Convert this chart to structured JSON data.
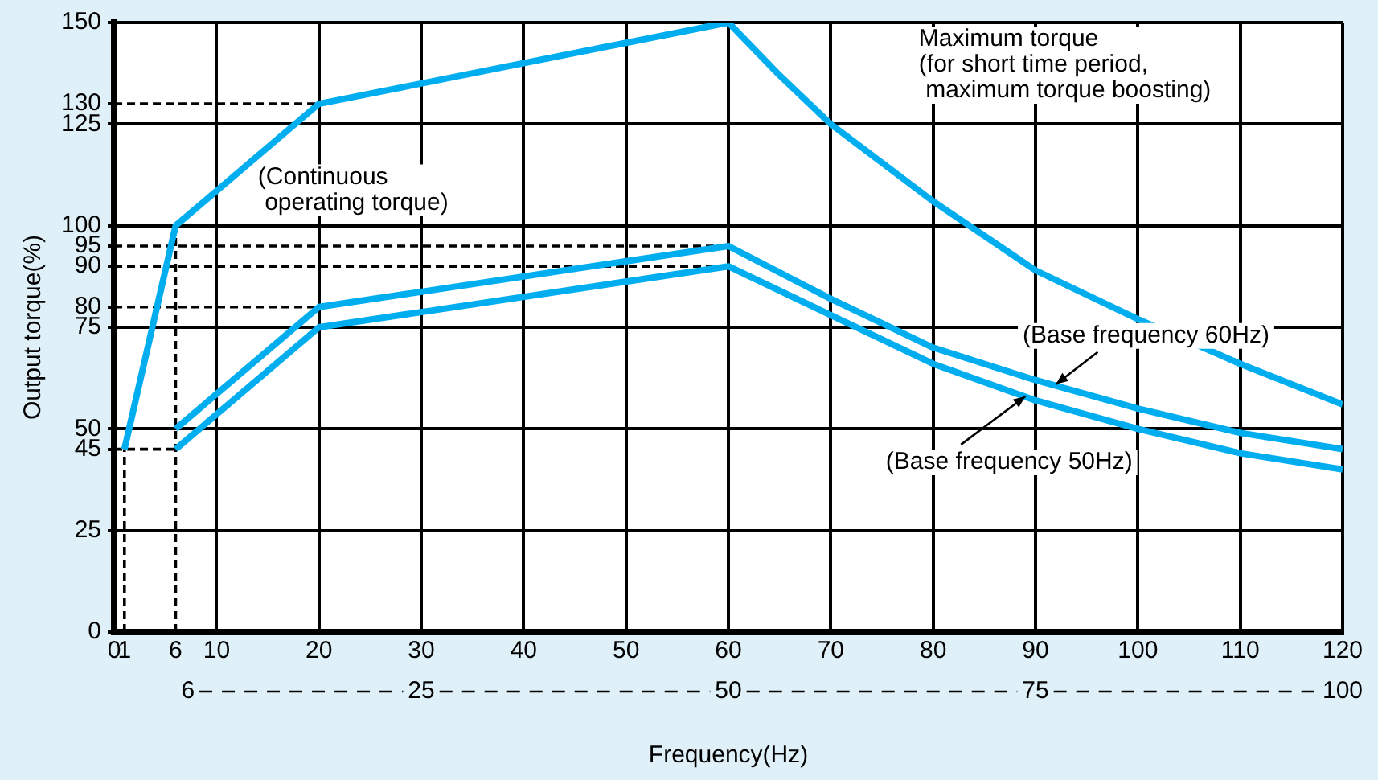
{
  "chart_data": {
    "type": "line",
    "xlabel": "Frequency(Hz)",
    "ylabel": "Output torque(%)",
    "xlim": [
      0,
      120
    ],
    "xticks": [
      0,
      1,
      6,
      10,
      20,
      30,
      40,
      50,
      60,
      70,
      80,
      90,
      100,
      110,
      120
    ],
    "x2lim": [
      0,
      100
    ],
    "x2ticks": [
      6,
      25,
      50,
      75,
      100
    ],
    "ylim": [
      0,
      150
    ],
    "yticks": [
      0,
      25,
      45,
      50,
      75,
      80,
      90,
      95,
      100,
      125,
      130,
      150
    ],
    "grid": true,
    "line_style": "solid",
    "series": [
      {
        "color": "#00aeef",
        "x": [
          1,
          6,
          20,
          60,
          65,
          70,
          80,
          90,
          100,
          110,
          120
        ],
        "values": [
          45,
          100,
          130,
          150,
          137,
          125,
          106,
          89,
          77,
          66,
          56
        ]
      },
      {
        "color": "#00aeef",
        "x": [
          6,
          20,
          60,
          70,
          80,
          90,
          100,
          110,
          120
        ],
        "values": [
          50,
          80,
          95,
          82,
          70,
          62,
          55,
          49,
          45
        ]
      },
      {
        "color": "#00aeef",
        "x": [
          6,
          20,
          60,
          70,
          80,
          90,
          100,
          110,
          120
        ],
        "values": [
          45,
          75,
          90,
          78,
          66,
          57,
          50,
          44,
          40
        ]
      },
      {
        "color": "#000000",
        "line_style": "dashed",
        "x": [
          0,
          6
        ],
        "values": [
          45,
          45
        ]
      }
    ],
    "ref_lines": [
      {
        "axis": "x",
        "value": 1,
        "line_style": "dashed",
        "color": "#000000"
      },
      {
        "axis": "x",
        "value": 6,
        "line_style": "dashed",
        "color": "#000000"
      },
      {
        "axis": "y",
        "value": 80,
        "line_style": "dashed",
        "color": "#000000"
      },
      {
        "axis": "y",
        "value": 90,
        "line_style": "dashed",
        "color": "#000000"
      },
      {
        "axis": "y",
        "value": 95,
        "line_style": "dashed",
        "color": "#000000"
      },
      {
        "axis": "y",
        "value": 130,
        "line_style": "dashed",
        "color": "#000000"
      }
    ],
    "annotations": [
      "Maximum torque\n(for short time period,\n maximum torque boosting)",
      "(Continuous\n operating torque)",
      {
        "text": "(Base frequency 60Hz)",
        "x": 92,
        "y": 61
      },
      {
        "text": "(Base frequency 50Hz)",
        "x": 89,
        "y": 58
      }
    ]
  }
}
